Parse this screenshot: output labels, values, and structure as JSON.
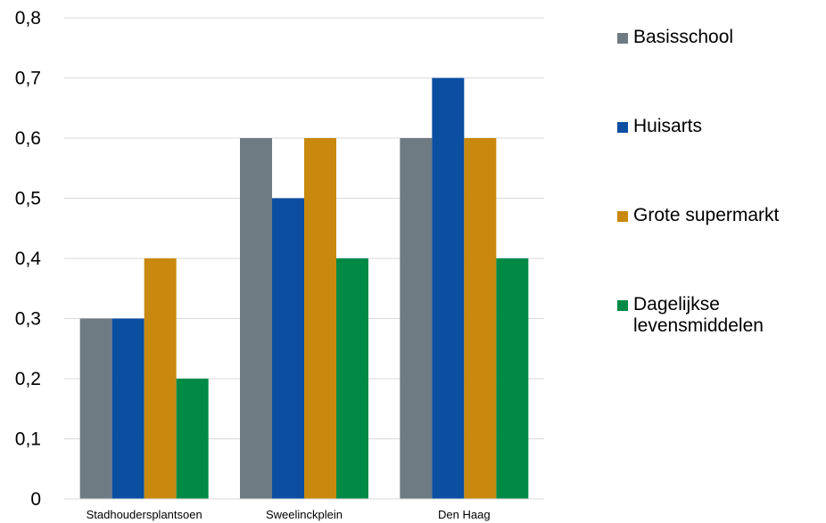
{
  "chart_data": {
    "type": "bar",
    "title": "",
    "xlabel": "",
    "ylabel": "",
    "categories": [
      "Stadhoudersplantsoen",
      "Sweelinckplein",
      "Den Haag"
    ],
    "series": [
      {
        "name": "Basisschool",
        "color": "#6f7b83",
        "values": [
          0.3,
          0.6,
          0.6
        ]
      },
      {
        "name": "Huisarts",
        "color": "#0b4ea2",
        "values": [
          0.3,
          0.5,
          0.7
        ]
      },
      {
        "name": "Grote supermarkt",
        "color": "#c8890e",
        "values": [
          0.4,
          0.6,
          0.6
        ]
      },
      {
        "name": "Dagelijkse levensmiddelen",
        "color": "#008a46",
        "values": [
          0.2,
          0.4,
          0.4
        ]
      }
    ],
    "ylim": [
      0,
      0.8
    ],
    "yticks": [
      "0",
      "0,1",
      "0,2",
      "0,3",
      "0,4",
      "0,5",
      "0,6",
      "0,7",
      "0,8"
    ],
    "grid": true,
    "legend_position": "right"
  }
}
